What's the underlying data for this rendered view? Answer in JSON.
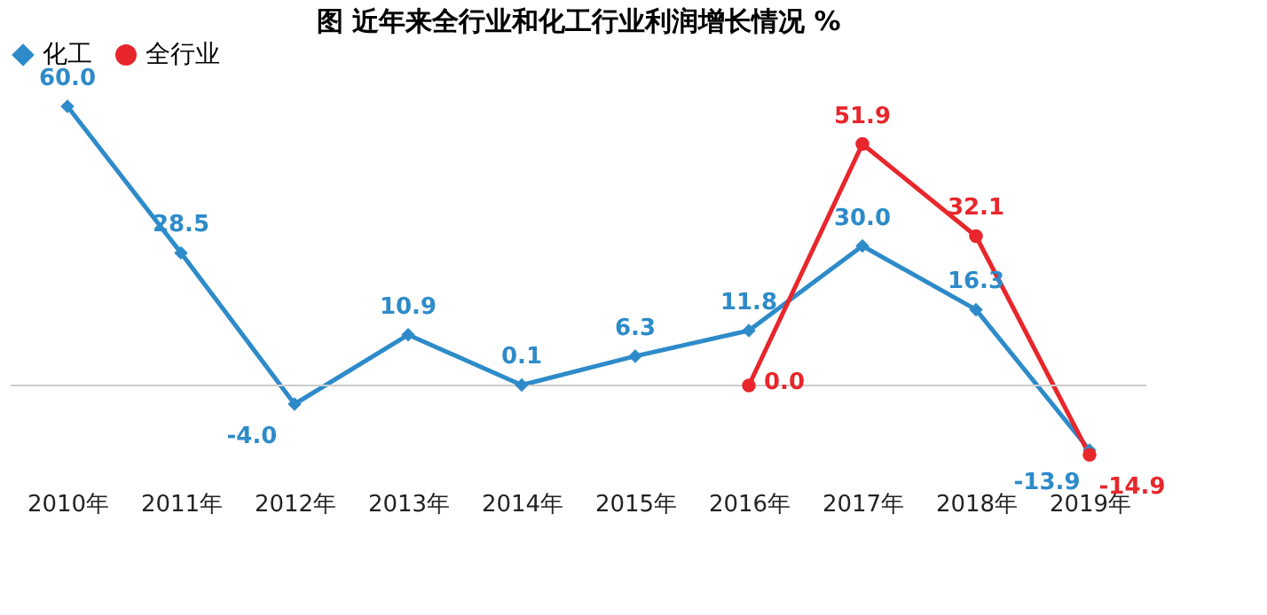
{
  "chart_data": {
    "type": "line",
    "title": "图  近年来全行业和化工行业利润增长情况  %",
    "categories": [
      "2010年",
      "2011年",
      "2012年",
      "2013年",
      "2014年",
      "2015年",
      "2016年",
      "2017年",
      "2018年",
      "2019年"
    ],
    "series": [
      {
        "name": "化工",
        "color": "#2e8bc9",
        "marker": "diamond",
        "values": [
          60.0,
          28.5,
          -4.0,
          10.9,
          0.1,
          6.3,
          11.8,
          30.0,
          16.3,
          -13.9
        ],
        "value_labels": [
          "60.0",
          "28.5",
          "-4.0",
          "10.9",
          "0.1",
          "6.3",
          "11.8",
          "30.0",
          "16.3",
          "-13.9"
        ]
      },
      {
        "name": "全行业",
        "color": "#e8262b",
        "marker": "circle",
        "values": [
          null,
          null,
          null,
          null,
          null,
          null,
          0.0,
          51.9,
          32.1,
          -14.9
        ],
        "value_labels": [
          null,
          null,
          null,
          null,
          null,
          null,
          "0.0",
          "51.9",
          "32.1",
          "-14.9"
        ]
      }
    ],
    "tick_labels": "x",
    "legend": "top",
    "grid": false
  }
}
